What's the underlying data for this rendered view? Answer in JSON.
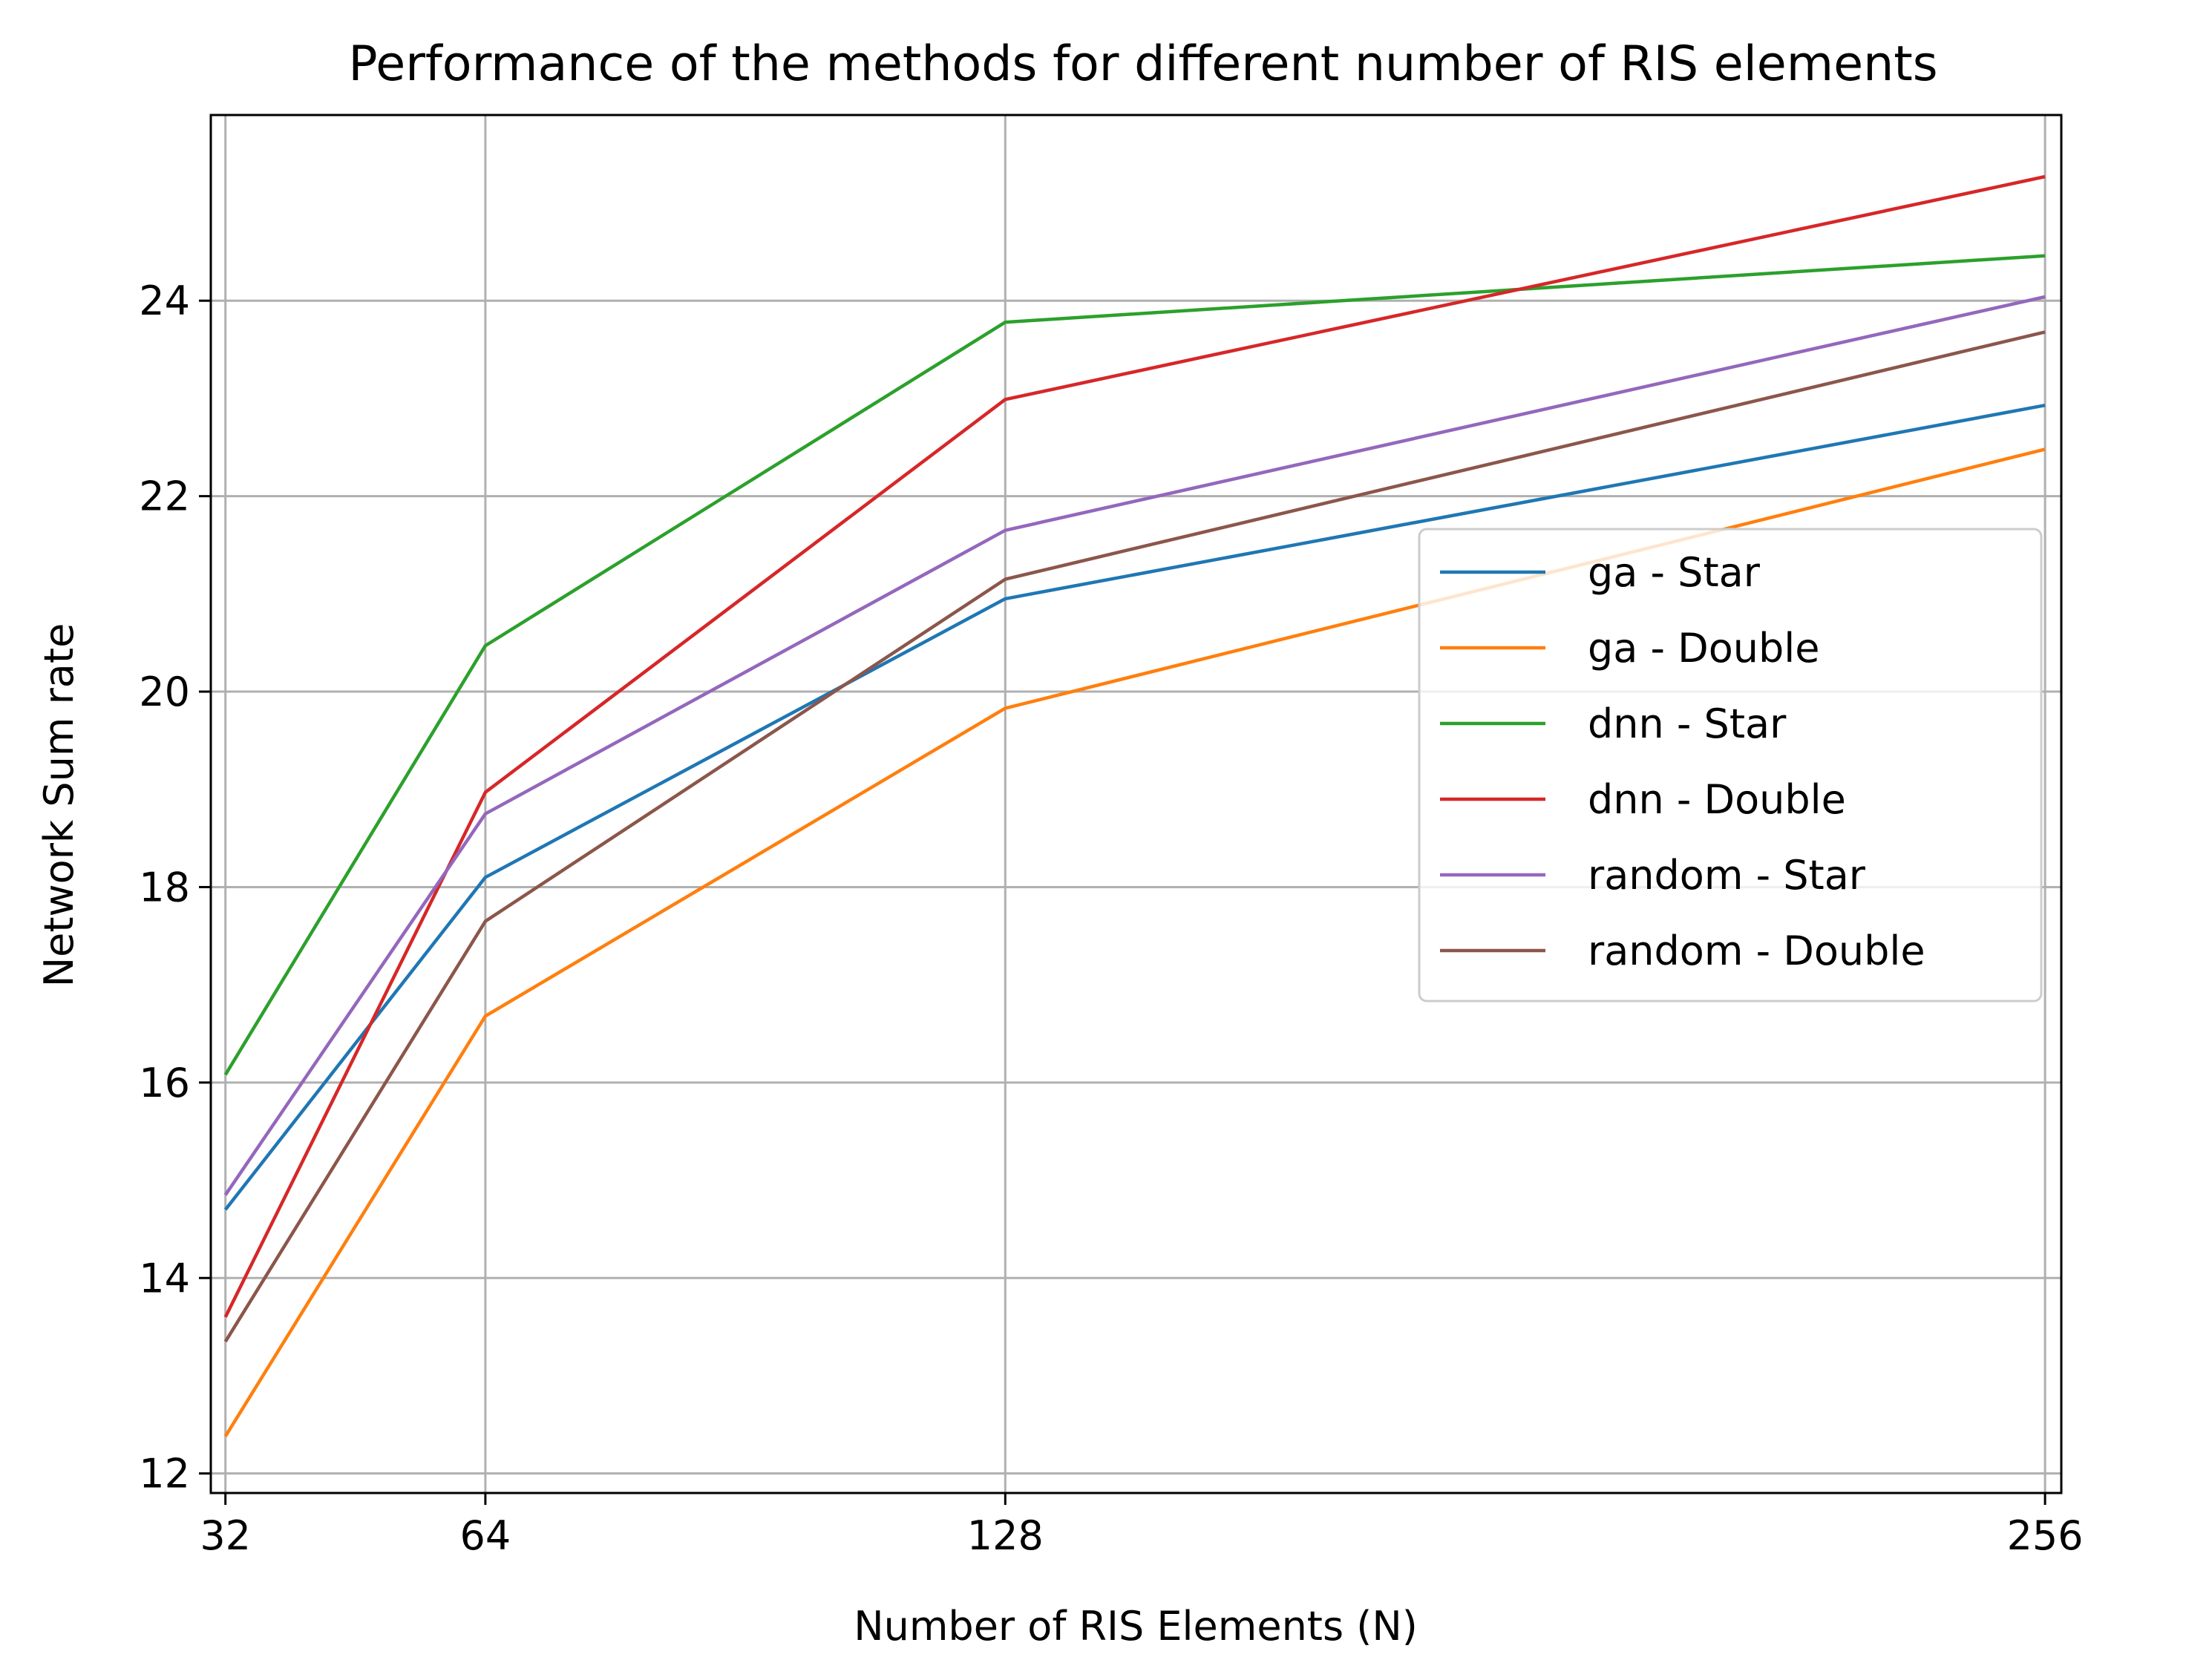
{
  "chart_data": {
    "type": "line",
    "title": "Performance of the methods for different number of RIS elements",
    "xlabel": "Number of RIS Elements (N)",
    "ylabel": "Network Sum rate",
    "x": [
      32,
      64,
      128,
      256
    ],
    "xticks": [
      32,
      64,
      128,
      256
    ],
    "yticks": [
      12,
      14,
      16,
      18,
      20,
      22,
      24
    ],
    "xlim": [
      30.2,
      258.0
    ],
    "ylim": [
      11.8,
      25.9
    ],
    "grid": true,
    "legend_position": "center-right",
    "series": [
      {
        "name": "ga - Star",
        "color": "#1f77b4",
        "values": [
          14.7,
          18.1,
          20.95,
          22.93
        ]
      },
      {
        "name": "ga - Double",
        "color": "#ff7f0e",
        "values": [
          12.38,
          16.68,
          19.83,
          22.48
        ]
      },
      {
        "name": "dnn - Star",
        "color": "#2ca02c",
        "values": [
          16.08,
          20.47,
          23.78,
          24.46
        ]
      },
      {
        "name": "dnn - Double",
        "color": "#d62728",
        "values": [
          13.6,
          18.97,
          22.99,
          25.27
        ]
      },
      {
        "name": "random - Star",
        "color": "#9467bd",
        "values": [
          14.85,
          18.75,
          21.65,
          24.04
        ]
      },
      {
        "name": "random - Double",
        "color": "#8c564b",
        "values": [
          13.35,
          17.65,
          21.15,
          23.68
        ]
      }
    ]
  }
}
